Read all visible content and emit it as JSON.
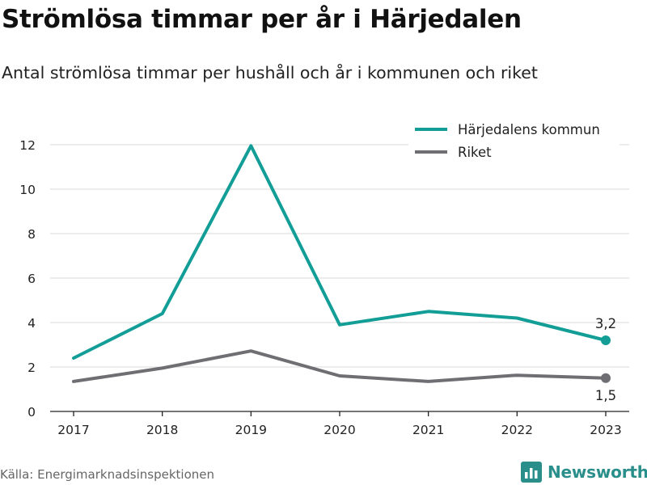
{
  "header": {
    "title": "Strömlösa timmar per år i Härjedalen",
    "subtitle": "Antal strömlösa timmar per hushåll och år i kommunen och riket"
  },
  "footer": {
    "source": "Källa: Energimarknadsinspektionen",
    "brand": "Newsworthy",
    "brand_icon": "bar-chart-logo-icon"
  },
  "colors": {
    "kommun": "#129e96",
    "riket": "#6e6e73",
    "grid": "#d9d9d9",
    "brand": "#2a8f8a"
  },
  "chart_data": {
    "type": "line",
    "title": "Strömlösa timmar per år i Härjedalen",
    "x": [
      "2017",
      "2018",
      "2019",
      "2020",
      "2021",
      "2022",
      "2023"
    ],
    "series": [
      {
        "name": "Härjedalens kommun",
        "color": "#129e96",
        "values": [
          2.4,
          4.4,
          11.95,
          3.9,
          4.5,
          4.2,
          3.2
        ],
        "end_label": "3,2"
      },
      {
        "name": "Riket",
        "color": "#6e6e73",
        "values": [
          1.35,
          1.95,
          2.72,
          1.6,
          1.35,
          1.63,
          1.5
        ],
        "end_label": "1,5"
      }
    ],
    "yticks": [
      "0",
      "2",
      "4",
      "6",
      "8",
      "10",
      "12"
    ],
    "ylim": [
      0,
      12
    ],
    "xlabel": "",
    "ylabel": "",
    "grid": true,
    "legend_position": "top-right"
  }
}
